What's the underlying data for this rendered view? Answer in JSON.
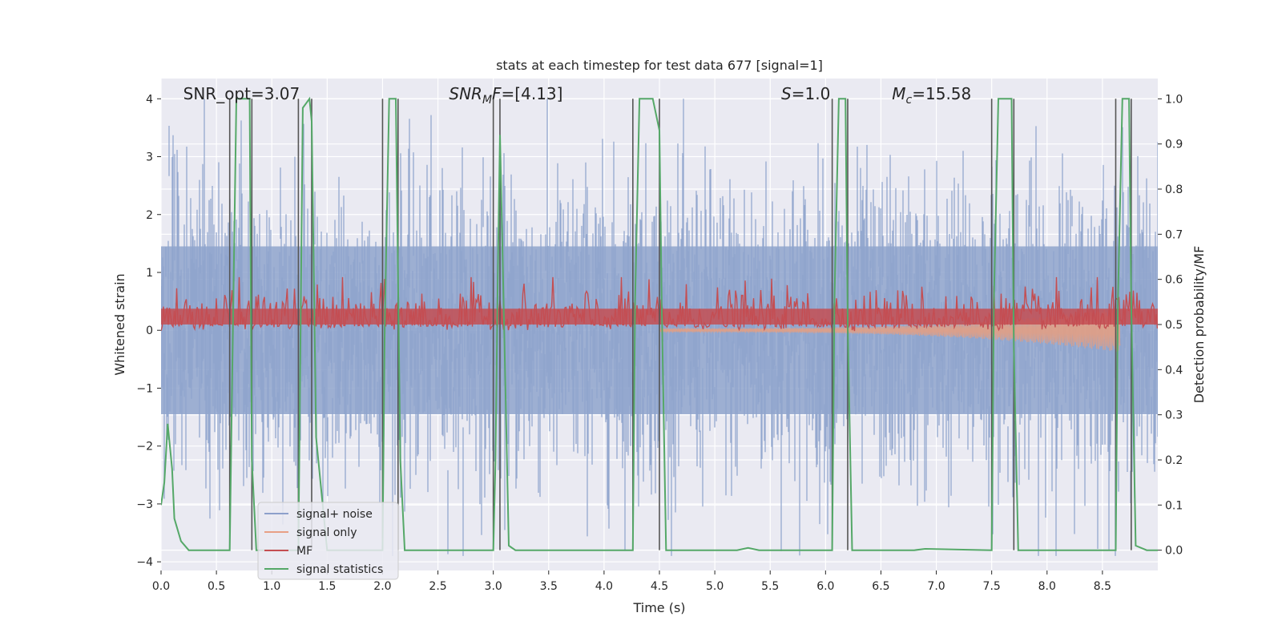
{
  "chart_data": {
    "type": "line",
    "title": "stats at each timestep for test data 677 [signal=1]",
    "xlabel": "Time (s)",
    "ylabel_left": "Whitened strain",
    "ylabel_right": "Detection probability/MF",
    "xlim": [
      0.0,
      9.0
    ],
    "ylim_left": [
      -4.15,
      4.35
    ],
    "ylim_right": [
      -0.045,
      1.045
    ],
    "xticks": [
      "0.0",
      "0.5",
      "1.0",
      "1.5",
      "2.0",
      "2.5",
      "3.0",
      "3.5",
      "4.0",
      "4.5",
      "5.0",
      "5.5",
      "6.0",
      "6.5",
      "7.0",
      "7.5",
      "8.0",
      "8.5"
    ],
    "xtick_values": [
      0.0,
      0.5,
      1.0,
      1.5,
      2.0,
      2.5,
      3.0,
      3.5,
      4.0,
      4.5,
      5.0,
      5.5,
      6.0,
      6.5,
      7.0,
      7.5,
      8.0,
      8.5
    ],
    "yticks_left": [
      "4",
      "3",
      "2",
      "1",
      "0",
      "−1",
      "−2",
      "−3",
      "−4"
    ],
    "ytick_values_left": [
      4,
      3,
      2,
      1,
      0,
      -1,
      -2,
      -3,
      -4
    ],
    "yticks_right": [
      "1.0",
      "0.9",
      "0.8",
      "0.7",
      "0.6",
      "0.5",
      "0.4",
      "0.3",
      "0.2",
      "0.1",
      "0.0"
    ],
    "ytick_values_right": [
      1.0,
      0.9,
      0.8,
      0.7,
      0.6,
      0.5,
      0.4,
      0.3,
      0.2,
      0.1,
      0.0
    ],
    "grid": true,
    "annotations": [
      {
        "prefix": "SNR_opt",
        "italic": false,
        "sub": "",
        "value": "=3.07",
        "x": 0.2
      },
      {
        "prefix": "SNR",
        "italic": true,
        "sub": "M",
        "suffix": "F",
        "value": "=[4.13]",
        "x": 2.6
      },
      {
        "prefix": "S",
        "italic": true,
        "sub": "",
        "value": "=1.0",
        "x": 5.6
      },
      {
        "prefix": "M",
        "italic": true,
        "sub": "c",
        "value": "=15.58",
        "x": 6.6
      }
    ],
    "legend": {
      "placement": "lower-left",
      "entries": [
        {
          "label": "signal+ noise",
          "color": "#8da0cb"
        },
        {
          "label": "signal only",
          "color": "#e8a085"
        },
        {
          "label": "MF",
          "color": "#c44e52"
        },
        {
          "label": "signal statistics",
          "color": "#55a868"
        }
      ]
    },
    "colors": {
      "noise": "#8fa4cc",
      "signal": "#e29e84",
      "mf": "#c44e52",
      "stat": "#55a868",
      "vline": "#555555",
      "axes_bg": "#eaeaf2"
    },
    "vertical_markers": [
      0.62,
      0.82,
      1.24,
      1.36,
      2.0,
      2.14,
      3.0,
      3.06,
      4.26,
      4.5,
      6.06,
      6.2,
      7.5,
      7.7,
      8.62,
      8.76
    ],
    "series": [
      {
        "name": "signal statistics",
        "axis": "right",
        "x": [
          0.0,
          0.03,
          0.06,
          0.1,
          0.12,
          0.18,
          0.25,
          0.3,
          0.5,
          0.62,
          0.64,
          0.68,
          0.8,
          0.82,
          0.86,
          1.2,
          1.24,
          1.28,
          1.34,
          1.36,
          1.4,
          1.5,
          2.0,
          2.02,
          2.06,
          2.12,
          2.14,
          2.16,
          2.2,
          3.0,
          3.02,
          3.04,
          3.06,
          3.08,
          3.14,
          3.2,
          4.0,
          4.26,
          4.28,
          4.32,
          4.44,
          4.5,
          4.52,
          4.56,
          5.2,
          5.3,
          5.4,
          6.06,
          6.08,
          6.12,
          6.18,
          6.2,
          6.24,
          6.8,
          6.9,
          7.5,
          7.52,
          7.56,
          7.68,
          7.7,
          7.74,
          8.62,
          8.64,
          8.68,
          8.74,
          8.76,
          8.8,
          8.9,
          9.0
        ],
        "values": [
          0.1,
          0.15,
          0.28,
          0.18,
          0.07,
          0.02,
          0.0,
          0.0,
          0.0,
          0.0,
          0.35,
          1.0,
          1.0,
          0.2,
          0.0,
          0.0,
          0.0,
          0.98,
          1.0,
          0.95,
          0.25,
          0.0,
          0.0,
          0.5,
          1.0,
          1.0,
          0.6,
          0.2,
          0.0,
          0.0,
          0.2,
          0.6,
          0.92,
          0.7,
          0.01,
          0.0,
          0.0,
          0.0,
          0.55,
          1.0,
          1.0,
          0.93,
          0.55,
          0.0,
          0.0,
          0.005,
          0.0,
          0.0,
          0.55,
          1.0,
          1.0,
          0.5,
          0.0,
          0.0,
          0.003,
          0.0,
          0.55,
          1.0,
          1.0,
          0.45,
          0.0,
          0.0,
          0.55,
          1.0,
          1.0,
          0.55,
          0.01,
          0.0,
          0.0
        ]
      }
    ]
  }
}
